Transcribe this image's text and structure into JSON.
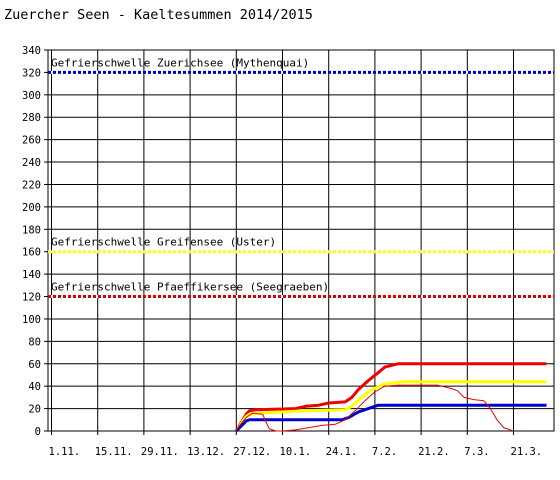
{
  "chart_data": {
    "type": "line",
    "title": "Zuercher Seen - Kaeltesummen 2014/2015",
    "xlabel": "",
    "ylabel": "",
    "ylim": [
      0,
      340
    ],
    "yticks": [
      0,
      20,
      40,
      60,
      80,
      100,
      120,
      140,
      160,
      180,
      200,
      220,
      240,
      260,
      280,
      300,
      320,
      340
    ],
    "x_start": "2014-11-01",
    "x_end": "2015-03-31",
    "xticks": [
      {
        "label": "1.11.",
        "date": "2014-11-01"
      },
      {
        "label": "15.11.",
        "date": "2014-11-15"
      },
      {
        "label": "29.11.",
        "date": "2014-11-29"
      },
      {
        "label": "13.12.",
        "date": "2014-12-13"
      },
      {
        "label": "27.12.",
        "date": "2014-12-27"
      },
      {
        "label": "10.1.",
        "date": "2015-01-10"
      },
      {
        "label": "24.1.",
        "date": "2015-01-24"
      },
      {
        "label": "7.2.",
        "date": "2015-02-07"
      },
      {
        "label": "21.2.",
        "date": "2015-02-21"
      },
      {
        "label": "7.3.",
        "date": "2015-03-07"
      },
      {
        "label": "21.3.",
        "date": "2015-03-21"
      }
    ],
    "grid": true,
    "thresholds": [
      {
        "label": "Gefrierschwelle Zuerichsee (Mythenquai)",
        "value": 320,
        "color": "#0000cc"
      },
      {
        "label": "Gefrierschwelle Greifensee (Uster)",
        "value": 160,
        "color": "#ffff00"
      },
      {
        "label": "Gefrierschwelle Pfaeffikersee (Seegraeben)",
        "value": 120,
        "color": "#dd0000"
      }
    ],
    "series": [
      {
        "color": "#ee0000",
        "width": 3,
        "points": [
          [
            "2014-12-27",
            0
          ],
          [
            "2014-12-28",
            5
          ],
          [
            "2014-12-29",
            10
          ],
          [
            "2014-12-30",
            15
          ],
          [
            "2014-12-31",
            18
          ],
          [
            "2015-01-02",
            19
          ],
          [
            "2015-01-14",
            20
          ],
          [
            "2015-01-17",
            22
          ],
          [
            "2015-01-21",
            23
          ],
          [
            "2015-01-24",
            25
          ],
          [
            "2015-01-29",
            26
          ],
          [
            "2015-01-31",
            30
          ],
          [
            "2015-02-02",
            37
          ],
          [
            "2015-02-05",
            45
          ],
          [
            "2015-02-08",
            52
          ],
          [
            "2015-02-10",
            57
          ],
          [
            "2015-02-14",
            60
          ],
          [
            "2015-03-31",
            60
          ]
        ]
      },
      {
        "color": "#ffff00",
        "width": 3,
        "points": [
          [
            "2014-12-27",
            0
          ],
          [
            "2014-12-28",
            4
          ],
          [
            "2014-12-29",
            9
          ],
          [
            "2014-12-30",
            13
          ],
          [
            "2014-12-31",
            15
          ],
          [
            "2015-01-03",
            16
          ],
          [
            "2015-01-17",
            18
          ],
          [
            "2015-01-29",
            19
          ],
          [
            "2015-01-31",
            22
          ],
          [
            "2015-02-03",
            30
          ],
          [
            "2015-02-06",
            37
          ],
          [
            "2015-02-10",
            42
          ],
          [
            "2015-02-16",
            44
          ],
          [
            "2015-03-31",
            44
          ]
        ]
      },
      {
        "color": "#0000cc",
        "width": 3,
        "points": [
          [
            "2014-12-27",
            0
          ],
          [
            "2014-12-28",
            3
          ],
          [
            "2014-12-29",
            6
          ],
          [
            "2014-12-30",
            9
          ],
          [
            "2014-12-31",
            10
          ],
          [
            "2015-01-28",
            10
          ],
          [
            "2015-01-30",
            12
          ],
          [
            "2015-02-02",
            17
          ],
          [
            "2015-02-05",
            20
          ],
          [
            "2015-02-08",
            23
          ],
          [
            "2015-03-31",
            23
          ]
        ]
      },
      {
        "color": "#ee0000",
        "width": 1,
        "points": [
          [
            "2014-12-27",
            0
          ],
          [
            "2014-12-28",
            5
          ],
          [
            "2014-12-30",
            12
          ],
          [
            "2015-01-01",
            16
          ],
          [
            "2015-01-04",
            15
          ],
          [
            "2015-01-05",
            8
          ],
          [
            "2015-01-06",
            2
          ],
          [
            "2015-01-08",
            0
          ],
          [
            "2015-01-10",
            0
          ],
          [
            "2015-01-14",
            1
          ],
          [
            "2015-01-18",
            3
          ],
          [
            "2015-01-22",
            5
          ],
          [
            "2015-01-26",
            6
          ],
          [
            "2015-01-29",
            10
          ],
          [
            "2015-02-01",
            18
          ],
          [
            "2015-02-04",
            27
          ],
          [
            "2015-02-07",
            35
          ],
          [
            "2015-02-10",
            40
          ],
          [
            "2015-02-14",
            41
          ],
          [
            "2015-02-26",
            41
          ],
          [
            "2015-03-02",
            38
          ],
          [
            "2015-03-04",
            36
          ],
          [
            "2015-03-06",
            30
          ],
          [
            "2015-03-09",
            28
          ],
          [
            "2015-03-12",
            27
          ],
          [
            "2015-03-14",
            20
          ],
          [
            "2015-03-16",
            10
          ],
          [
            "2015-03-18",
            3
          ],
          [
            "2015-03-21",
            0
          ]
        ]
      }
    ]
  }
}
